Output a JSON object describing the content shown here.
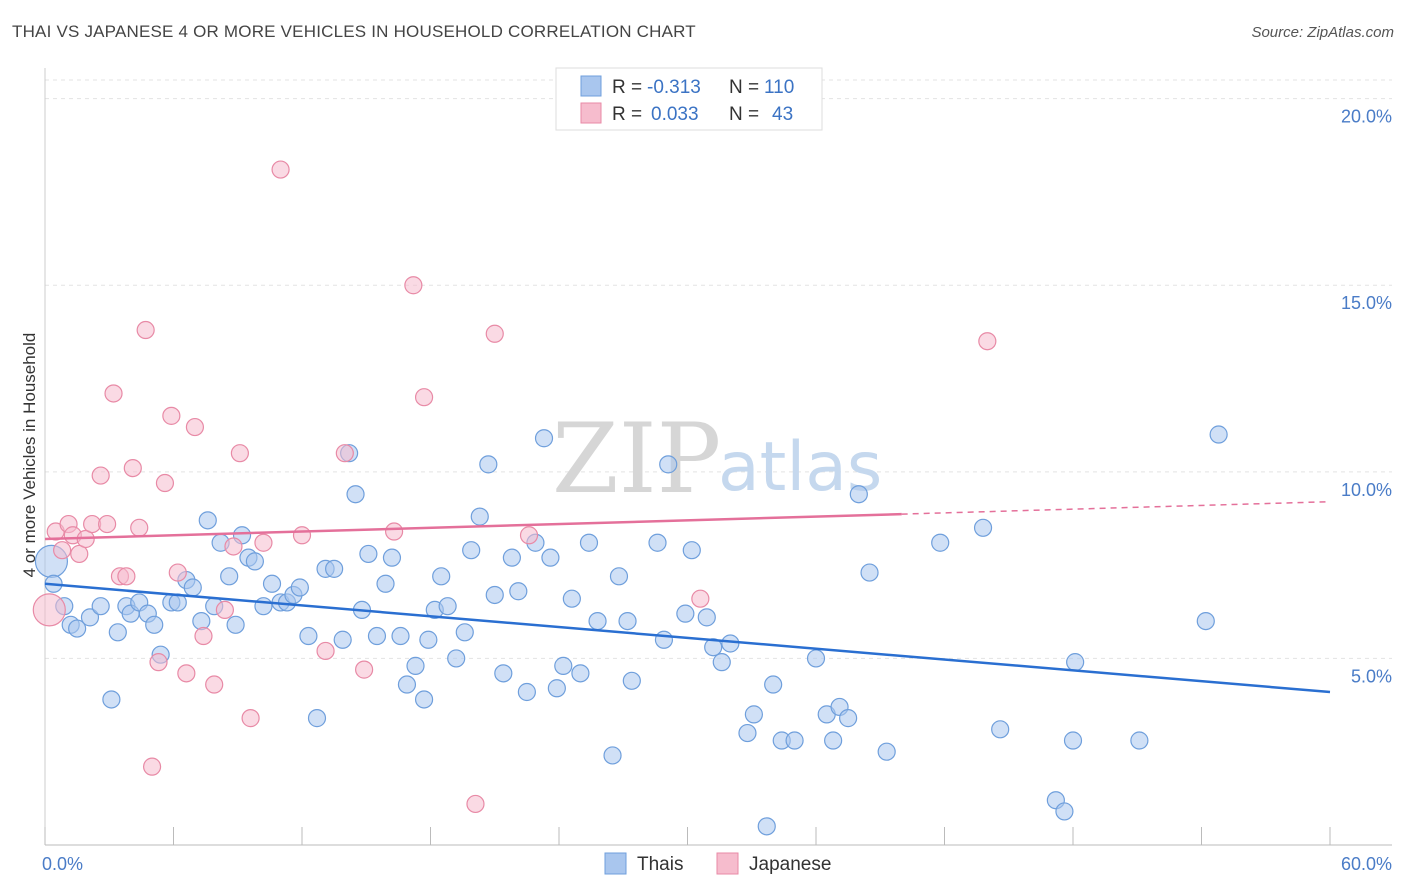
{
  "title": "THAI VS JAPANESE 4 OR MORE VEHICLES IN HOUSEHOLD CORRELATION CHART",
  "source": "Source: ZipAtlas.com",
  "watermark": {
    "zip": "ZIP",
    "atlas": "atlas"
  },
  "chart_data": {
    "type": "scatter",
    "ylabel": "4 or more Vehicles in Household",
    "xlim": [
      0,
      60
    ],
    "ylim": [
      0,
      20.5
    ],
    "x_ticks": [
      "0.0%",
      "60.0%"
    ],
    "y_ticks": [
      {
        "value": 5,
        "label": "5.0%"
      },
      {
        "value": 10,
        "label": "10.0%"
      },
      {
        "value": 15,
        "label": "15.0%"
      },
      {
        "value": 20,
        "label": "20.0%"
      }
    ],
    "grid": true,
    "legend_position": "top-center",
    "legend": {
      "rows": [
        {
          "r_label": "R = ",
          "r": "-0.313",
          "n_label": "N = ",
          "n": "110",
          "color": "#a9c6ee",
          "stroke": "#6f9fdc"
        },
        {
          "r_label": "R = ",
          "r": "0.033",
          "n_label": "N = ",
          "n": "43",
          "color": "#f6bccd",
          "stroke": "#e88aa6"
        }
      ]
    },
    "series": [
      {
        "name": "Thais",
        "color": "#a9c6ee",
        "stroke": "#6f9fdc",
        "trend": {
          "x0": 0,
          "y0": 7.0,
          "x1": 60,
          "y1": 4.1,
          "color": "#2a6fd1",
          "solid_to": 60
        },
        "points": [
          [
            0.3,
            7.6
          ],
          [
            0.4,
            7.0
          ],
          [
            0.9,
            6.4
          ],
          [
            1.2,
            5.9
          ],
          [
            1.5,
            5.8
          ],
          [
            2.1,
            6.1
          ],
          [
            2.6,
            6.4
          ],
          [
            3.1,
            3.9
          ],
          [
            3.4,
            5.7
          ],
          [
            3.8,
            6.4
          ],
          [
            4.0,
            6.2
          ],
          [
            4.4,
            6.5
          ],
          [
            4.8,
            6.2
          ],
          [
            5.1,
            5.9
          ],
          [
            5.4,
            5.1
          ],
          [
            5.9,
            6.5
          ],
          [
            6.2,
            6.5
          ],
          [
            6.6,
            7.1
          ],
          [
            6.9,
            6.9
          ],
          [
            7.3,
            6.0
          ],
          [
            7.6,
            8.7
          ],
          [
            7.9,
            6.4
          ],
          [
            8.2,
            8.1
          ],
          [
            8.6,
            7.2
          ],
          [
            8.9,
            5.9
          ],
          [
            9.2,
            8.3
          ],
          [
            9.5,
            7.7
          ],
          [
            9.8,
            7.6
          ],
          [
            10.2,
            6.4
          ],
          [
            10.6,
            7.0
          ],
          [
            11.0,
            6.5
          ],
          [
            11.3,
            6.5
          ],
          [
            11.6,
            6.7
          ],
          [
            11.9,
            6.9
          ],
          [
            12.3,
            5.6
          ],
          [
            12.7,
            3.4
          ],
          [
            13.1,
            7.4
          ],
          [
            13.5,
            7.4
          ],
          [
            13.9,
            5.5
          ],
          [
            14.2,
            10.5
          ],
          [
            14.5,
            9.4
          ],
          [
            14.8,
            6.3
          ],
          [
            15.1,
            7.8
          ],
          [
            15.5,
            5.6
          ],
          [
            15.9,
            7.0
          ],
          [
            16.2,
            7.7
          ],
          [
            16.6,
            5.6
          ],
          [
            16.9,
            4.3
          ],
          [
            17.3,
            4.8
          ],
          [
            17.7,
            3.9
          ],
          [
            17.9,
            5.5
          ],
          [
            18.2,
            6.3
          ],
          [
            18.5,
            7.2
          ],
          [
            18.8,
            6.4
          ],
          [
            19.2,
            5.0
          ],
          [
            19.6,
            5.7
          ],
          [
            19.9,
            7.9
          ],
          [
            20.3,
            8.8
          ],
          [
            20.7,
            10.2
          ],
          [
            21.0,
            6.7
          ],
          [
            21.4,
            4.6
          ],
          [
            21.8,
            7.7
          ],
          [
            22.1,
            6.8
          ],
          [
            22.5,
            4.1
          ],
          [
            22.9,
            8.1
          ],
          [
            23.3,
            10.9
          ],
          [
            23.6,
            7.7
          ],
          [
            23.9,
            4.2
          ],
          [
            24.2,
            4.8
          ],
          [
            24.6,
            6.6
          ],
          [
            25.0,
            4.6
          ],
          [
            25.4,
            8.1
          ],
          [
            25.8,
            6.0
          ],
          [
            26.5,
            2.4
          ],
          [
            26.8,
            7.2
          ],
          [
            27.2,
            6.0
          ],
          [
            27.4,
            4.4
          ],
          [
            28.6,
            8.1
          ],
          [
            28.9,
            5.5
          ],
          [
            29.1,
            10.2
          ],
          [
            29.9,
            6.2
          ],
          [
            30.2,
            7.9
          ],
          [
            30.9,
            6.1
          ],
          [
            31.2,
            5.3
          ],
          [
            31.6,
            4.9
          ],
          [
            32.0,
            5.4
          ],
          [
            32.8,
            3.0
          ],
          [
            33.1,
            3.5
          ],
          [
            33.7,
            0.5
          ],
          [
            34.0,
            4.3
          ],
          [
            34.4,
            2.8
          ],
          [
            35.0,
            2.8
          ],
          [
            36.0,
            5.0
          ],
          [
            36.5,
            3.5
          ],
          [
            36.8,
            2.8
          ],
          [
            37.1,
            3.7
          ],
          [
            37.5,
            3.4
          ],
          [
            38.0,
            9.4
          ],
          [
            38.5,
            7.3
          ],
          [
            39.3,
            2.5
          ],
          [
            41.8,
            8.1
          ],
          [
            43.8,
            8.5
          ],
          [
            44.6,
            3.1
          ],
          [
            47.2,
            1.2
          ],
          [
            47.6,
            0.9
          ],
          [
            48.0,
            2.8
          ],
          [
            48.1,
            4.9
          ],
          [
            51.1,
            2.8
          ],
          [
            54.2,
            6.0
          ],
          [
            54.8,
            11.0
          ]
        ]
      },
      {
        "name": "Japanese",
        "color": "#f6bccd",
        "stroke": "#e88aa6",
        "trend": {
          "x0": 0,
          "y0": 8.2,
          "x1": 60,
          "y1": 9.2,
          "color": "#e4709a",
          "solid_to": 40
        },
        "points": [
          [
            0.2,
            6.3
          ],
          [
            0.5,
            8.4
          ],
          [
            0.8,
            7.9
          ],
          [
            1.1,
            8.6
          ],
          [
            1.3,
            8.3
          ],
          [
            1.6,
            7.8
          ],
          [
            1.9,
            8.2
          ],
          [
            2.2,
            8.6
          ],
          [
            2.6,
            9.9
          ],
          [
            2.9,
            8.6
          ],
          [
            3.2,
            12.1
          ],
          [
            3.5,
            7.2
          ],
          [
            3.8,
            7.2
          ],
          [
            4.1,
            10.1
          ],
          [
            4.4,
            8.5
          ],
          [
            4.7,
            13.8
          ],
          [
            5.0,
            2.1
          ],
          [
            5.3,
            4.9
          ],
          [
            5.6,
            9.7
          ],
          [
            5.9,
            11.5
          ],
          [
            6.2,
            7.3
          ],
          [
            6.6,
            4.6
          ],
          [
            7.0,
            11.2
          ],
          [
            7.4,
            5.6
          ],
          [
            7.9,
            4.3
          ],
          [
            8.4,
            6.3
          ],
          [
            8.8,
            8.0
          ],
          [
            9.1,
            10.5
          ],
          [
            9.6,
            3.4
          ],
          [
            10.2,
            8.1
          ],
          [
            11.0,
            18.1
          ],
          [
            12.0,
            8.3
          ],
          [
            13.1,
            5.2
          ],
          [
            14.0,
            10.5
          ],
          [
            14.9,
            4.7
          ],
          [
            16.3,
            8.4
          ],
          [
            17.2,
            15.0
          ],
          [
            17.7,
            12.0
          ],
          [
            20.1,
            1.1
          ],
          [
            21.0,
            13.7
          ],
          [
            22.6,
            8.3
          ],
          [
            30.6,
            6.6
          ],
          [
            44.0,
            13.5
          ]
        ]
      }
    ]
  }
}
